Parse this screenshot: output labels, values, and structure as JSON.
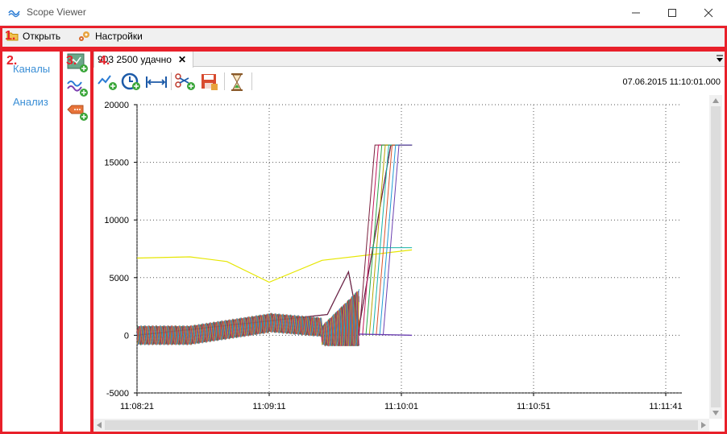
{
  "window": {
    "title": "Scope Viewer",
    "minimize_icon": "minimize-icon",
    "maximize_icon": "maximize-icon",
    "close_icon": "close-icon"
  },
  "menu": {
    "items": [
      {
        "label": "Открыть",
        "icon": "folder-open-icon"
      },
      {
        "label": "Настройки",
        "icon": "gears-icon"
      }
    ]
  },
  "nav": {
    "items": [
      {
        "label": "Каналы"
      },
      {
        "label": "Анализ"
      }
    ]
  },
  "tools": {
    "items": [
      {
        "icon": "add-chart-icon"
      },
      {
        "icon": "add-signal-icon"
      },
      {
        "icon": "add-tag-icon"
      }
    ]
  },
  "tab": {
    "label": "903 2500 удачно",
    "close_icon": "close-tab-icon",
    "overflow_icon": "tab-overflow-icon"
  },
  "toolbar": {
    "buttons": [
      {
        "icon": "add-trace-icon"
      },
      {
        "icon": "add-time-icon"
      },
      {
        "icon": "fit-width-icon"
      },
      {
        "icon": "cut-add-icon"
      },
      {
        "icon": "save-icon"
      },
      {
        "icon": "hourglass-icon"
      }
    ],
    "datestamp": "07.06.2015 11:10:01.000"
  },
  "annotations": {
    "labels": [
      "1.",
      "2.",
      "3.",
      "4."
    ],
    "color": "#e8202a"
  },
  "chart_data": {
    "type": "line",
    "title": "",
    "xlabel": "",
    "ylabel": "",
    "x_tick_labels": [
      "11:08:21",
      "11:09:11",
      "11:10:01",
      "11:10:51",
      "11:11:41"
    ],
    "x_range_seconds_from_first_tick": [
      0,
      104
    ],
    "y_tick_labels": [
      "20000",
      "15000",
      "10000",
      "5000",
      "0",
      "-5000"
    ],
    "ylim": [
      -5000,
      20000
    ],
    "grid": true,
    "series": [
      {
        "color": "#e6e600",
        "x": [
          0,
          20,
          34,
          50,
          70,
          104
        ],
        "y": [
          6700,
          6800,
          6400,
          4600,
          6500,
          7400
        ]
      },
      {
        "color": "#1f9bd4",
        "x": [
          0,
          40,
          72,
          75,
          80,
          84,
          96,
          104
        ],
        "y": [
          0,
          1000,
          1800,
          3200,
          5500,
          700,
          16500,
          16500
        ]
      },
      {
        "color": "#7a1f3d",
        "x": [
          0,
          40,
          72,
          75,
          80,
          84,
          96,
          104
        ],
        "y": [
          0,
          1000,
          1800,
          3200,
          5500,
          700,
          16500,
          16500
        ]
      }
    ],
    "colors": {
      "yellow_trace": "#e6e600",
      "grid": "#555555"
    }
  }
}
